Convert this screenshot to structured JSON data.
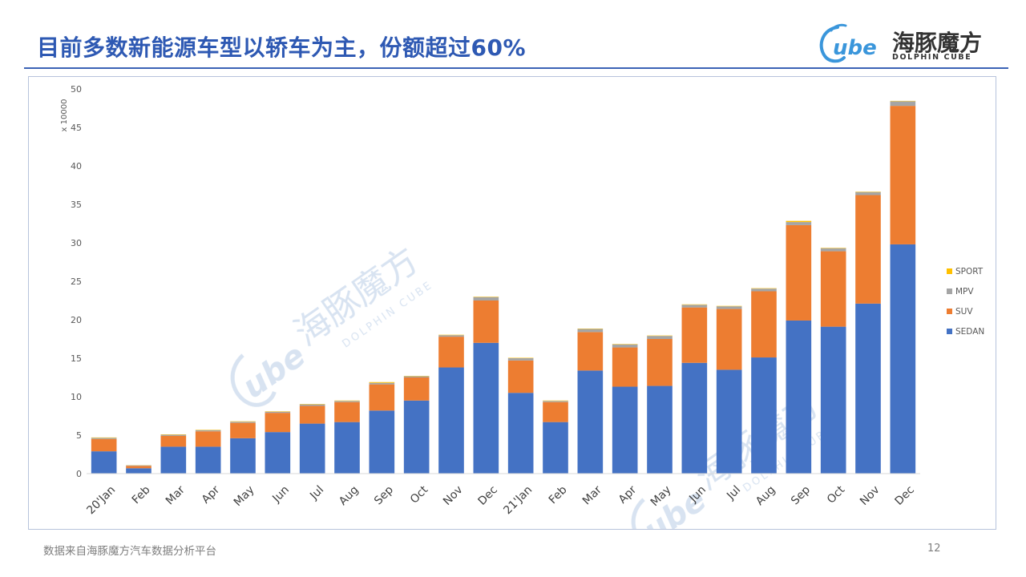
{
  "page": {
    "title": "目前多数新能源车型以轿车为主，份额超过60%",
    "footer": "数据来自海豚魔方汽车数据分析平台",
    "page_number": "12"
  },
  "logo": {
    "mark": "ube",
    "name_cn": "海豚魔方",
    "name_en": "DOLPHIN CUBE"
  },
  "colors": {
    "title": "#2e59b3",
    "rule": "#3b63b5",
    "sedan": "#4472c4",
    "suv": "#ed7d31",
    "mpv": "#a5a5a5",
    "sport": "#ffc000",
    "watermark": "#b9cde6"
  },
  "chart_data": {
    "type": "bar",
    "stacked": true,
    "unit_label": "x 10000",
    "ylim": [
      0,
      50
    ],
    "yticks": [
      0,
      5,
      10,
      15,
      20,
      25,
      30,
      35,
      40,
      45,
      50
    ],
    "grid": false,
    "legend_position": "right",
    "categories": [
      "20'Jan",
      "Feb",
      "Mar",
      "Apr",
      "May",
      "Jun",
      "Jul",
      "Aug",
      "Sep",
      "Oct",
      "Nov",
      "Dec",
      "21'Jan",
      "Feb",
      "Mar",
      "Apr",
      "May",
      "Jun",
      "Jul",
      "Aug",
      "Sep",
      "Oct",
      "Nov",
      "Dec"
    ],
    "series": [
      {
        "name": "SEDAN",
        "color": "#4472c4",
        "values": [
          2.9,
          0.7,
          3.5,
          3.5,
          4.6,
          5.4,
          6.5,
          6.7,
          8.2,
          9.5,
          13.8,
          17.0,
          10.5,
          6.7,
          13.4,
          11.3,
          11.4,
          14.4,
          13.5,
          15.1,
          19.9,
          19.1,
          22.1,
          29.8
        ]
      },
      {
        "name": "SUV",
        "color": "#ed7d31",
        "values": [
          1.6,
          0.3,
          1.4,
          2.0,
          2.0,
          2.5,
          2.3,
          2.6,
          3.4,
          3.0,
          4.0,
          5.5,
          4.2,
          2.6,
          5.0,
          5.1,
          6.1,
          7.2,
          7.9,
          8.6,
          12.4,
          9.8,
          14.1,
          18.0
        ]
      },
      {
        "name": "MPV",
        "color": "#a5a5a5",
        "values": [
          0.15,
          0.08,
          0.15,
          0.15,
          0.15,
          0.15,
          0.2,
          0.15,
          0.2,
          0.15,
          0.2,
          0.45,
          0.3,
          0.15,
          0.4,
          0.4,
          0.4,
          0.35,
          0.35,
          0.35,
          0.4,
          0.4,
          0.4,
          0.6
        ]
      },
      {
        "name": "SPORT",
        "color": "#ffc000",
        "values": [
          0.05,
          0.02,
          0.05,
          0.05,
          0.05,
          0.05,
          0.05,
          0.05,
          0.1,
          0.05,
          0.05,
          0.05,
          0.05,
          0.05,
          0.05,
          0.05,
          0.05,
          0.05,
          0.05,
          0.05,
          0.15,
          0.05,
          0.05,
          0.05
        ]
      }
    ],
    "legend_order": [
      "SPORT",
      "MPV",
      "SUV",
      "SEDAN"
    ]
  }
}
